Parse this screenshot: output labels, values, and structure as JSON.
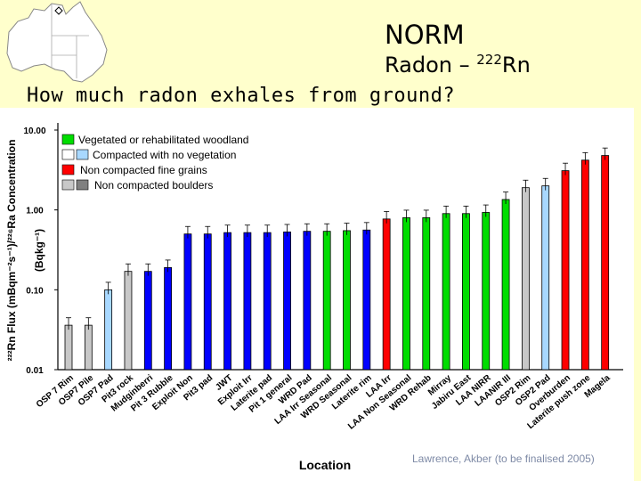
{
  "header": {
    "title": "NORM",
    "subtitle": "Radon – ",
    "subtitle_sup": "222",
    "subtitle_tail": "Rn",
    "question": "How much radon exhales from ground?",
    "credit": "Lawrence, Akber (to be finalised 2005)"
  },
  "chart_data": {
    "type": "bar",
    "yscale": "log",
    "ylim": [
      0.01,
      10
    ],
    "yticks": [
      "10.00",
      "1.00",
      "0.10",
      "0.01"
    ],
    "ylabel_line1": "²²²Rn Flux (mBqm⁻²s⁻¹)/²²⁶Ra Concentration",
    "ylabel_line2": "(Bqkg⁻¹)",
    "xlabel": "Location",
    "legend": [
      {
        "label": "Vegetated or rehabilitated woodland",
        "colors": [
          "#00dd00"
        ]
      },
      {
        "label": "Compacted with no vegetation",
        "colors": [
          "#a8d8ff"
        ]
      },
      {
        "label": "Non compacted fine grains",
        "colors": [
          "#ff0000"
        ]
      },
      {
        "label": "Non compacted boulders",
        "colors": [
          "#c8c8c8",
          "#808080"
        ]
      }
    ],
    "categories": [
      "OSP 7 Rim",
      "OSP7 Pile",
      "OSP7 Pad",
      "Pit3 rock",
      "Mudginberri",
      "Pit 3 Rubble",
      "Exploit Non",
      "Pit3 pad",
      "JWT",
      "Exploit Irr",
      "Laterite pad",
      "Pit 1 general",
      "WRD Pad",
      "LAA Irr Seasonal",
      "WRD Seasonal",
      "Laterite rim",
      "LAA Irr",
      "LAA Non Seasonal",
      "WRD Rehab",
      "Mirray",
      "Jabiru East",
      "LAA NIRR",
      "LAANIR III",
      "OSP2 Rim",
      "OSP2 Pad",
      "Overburden",
      "Laterite push zone",
      "Magela"
    ],
    "values": [
      0.036,
      0.036,
      0.1,
      0.17,
      0.17,
      0.19,
      0.5,
      0.5,
      0.52,
      0.52,
      0.52,
      0.53,
      0.54,
      0.54,
      0.55,
      0.56,
      0.77,
      0.8,
      0.8,
      0.9,
      0.9,
      0.93,
      1.35,
      1.9,
      2.0,
      3.1,
      4.2,
      4.8
    ],
    "groups": [
      "gray",
      "gray",
      "lightblue",
      "gray",
      "blue",
      "blue",
      "blue",
      "blue",
      "blue",
      "blue",
      "blue",
      "blue",
      "blue",
      "green",
      "green",
      "blue",
      "red",
      "green",
      "green",
      "green",
      "green",
      "green",
      "green",
      "gray",
      "lightblue",
      "red",
      "red",
      "red"
    ],
    "colors": {
      "gray": "#c8c8c8",
      "lightblue": "#a8d8ff",
      "blue": "#0000ff",
      "green": "#00dd00",
      "red": "#ff0000"
    }
  }
}
